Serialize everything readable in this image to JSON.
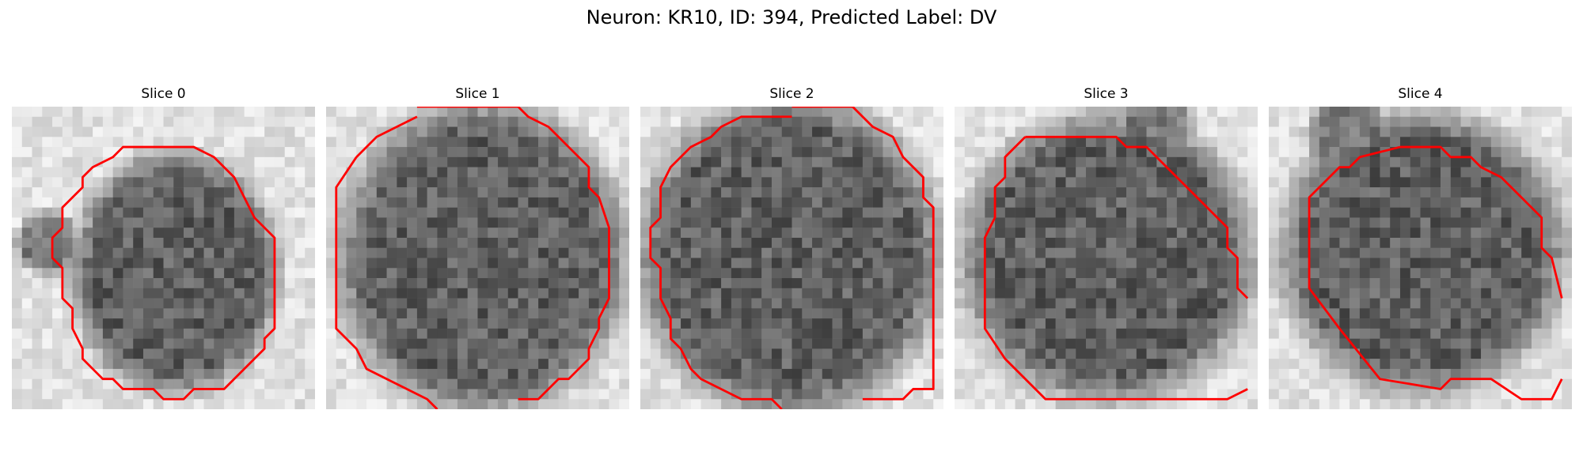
{
  "figure": {
    "title": "Neuron: KR10, ID: 394, Predicted Label: DV",
    "contour_color": "#ff0000"
  },
  "slices": [
    {
      "title": "Slice 0"
    },
    {
      "title": "Slice 1"
    },
    {
      "title": "Slice 2"
    },
    {
      "title": "Slice 3"
    },
    {
      "title": "Slice 4"
    }
  ]
}
